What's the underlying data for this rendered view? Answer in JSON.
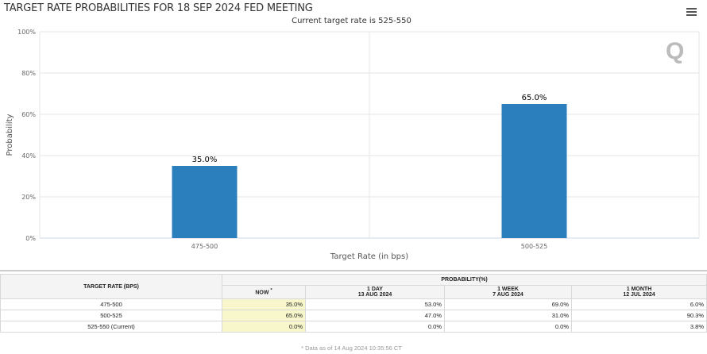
{
  "header": {
    "title": "TARGET RATE PROBABILITIES FOR 18 SEP 2024 FED MEETING",
    "menu_icon": "hamburger-icon"
  },
  "chart_data": {
    "type": "bar",
    "title": "TARGET RATE PROBABILITIES FOR 18 SEP 2024 FED MEETING",
    "subtitle": "Current target rate is 525-550",
    "categories": [
      "475-500",
      "500-525"
    ],
    "values": [
      35.0,
      65.0
    ],
    "data_labels": [
      "35.0%",
      "65.0%"
    ],
    "xlabel": "Target Rate (in bps)",
    "ylabel": "Probability",
    "ylim": [
      0,
      100
    ],
    "yticks": [
      "0%",
      "20%",
      "40%",
      "60%",
      "80%",
      "100%"
    ],
    "grid": true,
    "bar_color": "#2a7fbc"
  },
  "table": {
    "header_rate": "TARGET RATE (BPS)",
    "header_prob": "PROBABILITY(%)",
    "columns": [
      {
        "l1": "NOW",
        "l2": "",
        "star": "*"
      },
      {
        "l1": "1 DAY",
        "l2": "13 AUG 2024"
      },
      {
        "l1": "1 WEEK",
        "l2": "7 AUG 2024"
      },
      {
        "l1": "1 MONTH",
        "l2": "12 JUL 2024"
      }
    ],
    "rows": [
      {
        "rate": "475-500",
        "now": "35.0%",
        "day": "53.0%",
        "week": "69.0%",
        "month": "6.0%"
      },
      {
        "rate": "500-525",
        "now": "65.0%",
        "day": "47.0%",
        "week": "31.0%",
        "month": "90.3%"
      },
      {
        "rate": "525-550 (Current)",
        "now": "0.0%",
        "day": "0.0%",
        "week": "0.0%",
        "month": "3.8%"
      }
    ],
    "footnote": "* Data as of 14 Aug 2024 10:35:56 CT"
  }
}
